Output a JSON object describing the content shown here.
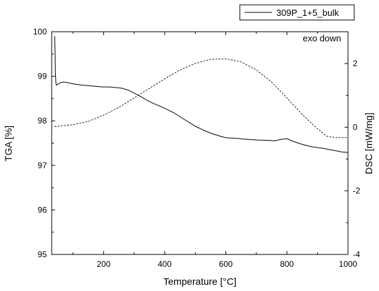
{
  "chart_data": {
    "type": "line",
    "title": "",
    "xlabel": "Temperature [°C]",
    "ylabel_left": "TGA [%]",
    "ylabel_right": "DSC [mW/mg]",
    "annotation": "exo down",
    "legend": {
      "entries": [
        "309P_1+5_bulk"
      ],
      "placement": "top-right"
    },
    "xlim": [
      30,
      1000
    ],
    "ylim_left": [
      95,
      100
    ],
    "ylim_right": [
      -4,
      3
    ],
    "grid": false,
    "x_ticks": [
      "200",
      "400",
      "600",
      "800",
      "1000"
    ],
    "y_ticks_left": [
      "95",
      "96",
      "97",
      "98",
      "99",
      "100"
    ],
    "y_ticks_right": [
      "-4",
      "-2",
      "0",
      "2"
    ],
    "series": [
      {
        "name": "309P_1+5_bulk",
        "axis": "left",
        "style": "solid",
        "x": [
          40,
          41,
          42,
          44,
          46,
          50,
          60,
          70,
          80,
          100,
          130,
          150,
          180,
          200,
          220,
          250,
          260,
          280,
          300,
          320,
          340,
          360,
          380,
          400,
          430,
          460,
          500,
          530,
          560,
          590,
          600,
          630,
          660,
          700,
          740,
          760,
          780,
          800,
          820,
          850,
          880,
          900,
          920,
          950,
          980,
          1000
        ],
        "y": [
          99.9,
          99.6,
          99.1,
          98.83,
          98.8,
          98.82,
          98.86,
          98.87,
          98.86,
          98.83,
          98.8,
          98.79,
          98.77,
          98.76,
          98.76,
          98.74,
          98.73,
          98.69,
          98.62,
          98.55,
          98.47,
          98.4,
          98.34,
          98.28,
          98.18,
          98.05,
          97.88,
          97.78,
          97.7,
          97.64,
          97.62,
          97.61,
          97.59,
          97.57,
          97.56,
          97.55,
          97.58,
          97.6,
          97.54,
          97.47,
          97.42,
          97.4,
          97.38,
          97.34,
          97.3,
          97.29
        ]
      },
      {
        "axis": "right",
        "style": "dashed",
        "x": [
          40,
          60,
          100,
          150,
          200,
          250,
          300,
          350,
          400,
          450,
          500,
          550,
          600,
          650,
          700,
          750,
          800,
          850,
          900,
          930,
          960,
          1000
        ],
        "y": [
          0.02,
          0.04,
          0.08,
          0.18,
          0.38,
          0.62,
          0.92,
          1.22,
          1.52,
          1.8,
          2.0,
          2.13,
          2.15,
          2.05,
          1.8,
          1.42,
          0.92,
          0.4,
          -0.05,
          -0.28,
          -0.33,
          -0.33
        ]
      }
    ]
  }
}
